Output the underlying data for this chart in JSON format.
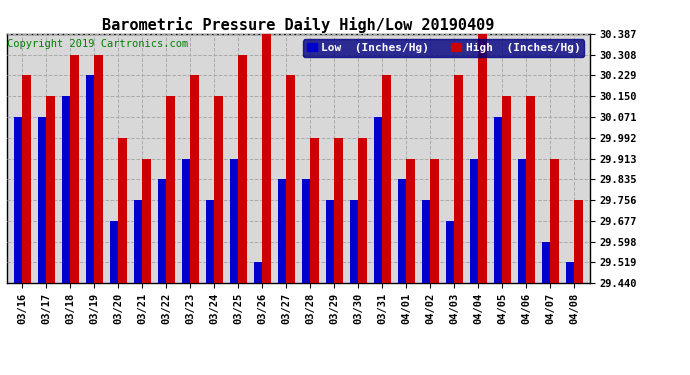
{
  "title": "Barometric Pressure Daily High/Low 20190409",
  "copyright": "Copyright 2019 Cartronics.com",
  "ylabel_low": "Low  (Inches/Hg)",
  "ylabel_high": "High  (Inches/Hg)",
  "categories": [
    "03/16",
    "03/17",
    "03/18",
    "03/19",
    "03/20",
    "03/21",
    "03/22",
    "03/23",
    "03/24",
    "03/25",
    "03/26",
    "03/27",
    "03/28",
    "03/29",
    "03/30",
    "03/31",
    "04/01",
    "04/02",
    "04/03",
    "04/04",
    "04/05",
    "04/06",
    "04/07",
    "04/08"
  ],
  "low_values": [
    30.071,
    30.071,
    30.15,
    30.229,
    29.677,
    29.756,
    29.835,
    29.913,
    29.756,
    29.913,
    29.519,
    29.835,
    29.835,
    29.756,
    29.756,
    30.071,
    29.835,
    29.756,
    29.677,
    29.913,
    30.071,
    29.913,
    29.598,
    29.519
  ],
  "high_values": [
    30.229,
    30.15,
    30.308,
    30.308,
    29.992,
    29.913,
    30.15,
    30.229,
    30.15,
    30.308,
    30.387,
    30.229,
    29.992,
    29.992,
    29.992,
    30.229,
    29.913,
    29.913,
    30.229,
    30.387,
    30.15,
    30.15,
    29.913,
    29.756
  ],
  "ylim_min": 29.44,
  "ylim_max": 30.387,
  "yticks": [
    29.44,
    29.519,
    29.598,
    29.677,
    29.756,
    29.835,
    29.913,
    29.992,
    30.071,
    30.15,
    30.229,
    30.308,
    30.387
  ],
  "low_color": "#0000cc",
  "high_color": "#cc0000",
  "bg_color": "#ffffff",
  "plot_bg_color": "#d8d8d8",
  "grid_color": "#aaaaaa",
  "border_color": "#000000",
  "title_fontsize": 11,
  "copyright_fontsize": 7.5,
  "tick_fontsize": 7.5,
  "legend_fontsize": 8,
  "bar_width": 0.35
}
